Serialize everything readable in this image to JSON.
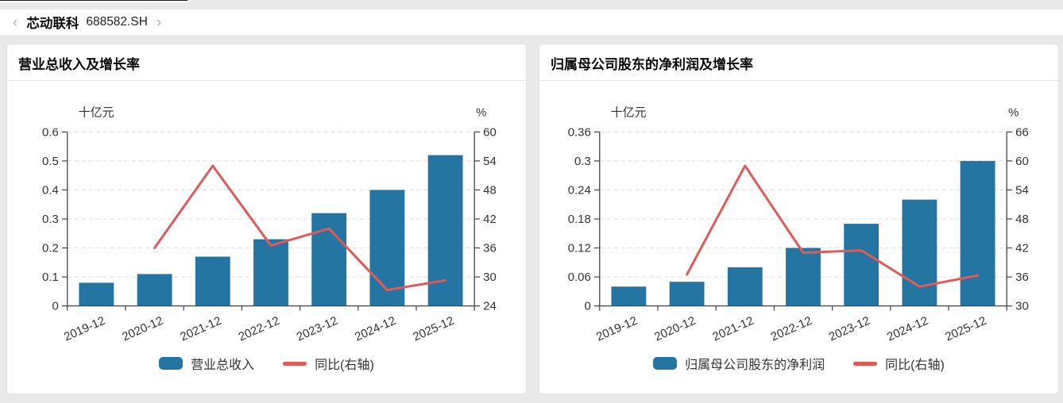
{
  "header": {
    "prev_icon": "‹",
    "next_icon": "›",
    "stock_name": "芯动联科",
    "stock_code": "688582.SH"
  },
  "colors": {
    "bar": "#2575a2",
    "line": "#e05a57",
    "grid": "#dcdcdc",
    "axis": "#444444",
    "text": "#333333",
    "page_bg": "#e9e9e9",
    "panel_bg": "#ffffff"
  },
  "charts": [
    {
      "title": "营业总收入及增长率",
      "legend": [
        {
          "type": "bar",
          "label": "营业总收入"
        },
        {
          "type": "line",
          "label": "同比(右轴)"
        }
      ],
      "chart_data": {
        "type": "bar",
        "title": "营业总收入及增长率",
        "categories": [
          "2019-12",
          "2020-12",
          "2021-12",
          "2022-12",
          "2023-12",
          "2024-12",
          "2025-12"
        ],
        "series": [
          {
            "name": "营业总收入",
            "type": "bar",
            "axis": "left",
            "values": [
              0.08,
              0.11,
              0.17,
              0.23,
              0.32,
              0.4,
              0.52
            ]
          },
          {
            "name": "同比(右轴)",
            "type": "line",
            "axis": "right",
            "values": [
              null,
              36,
              53,
              36.5,
              40,
              27.3,
              29.3
            ]
          }
        ],
        "left_axis": {
          "unit": "十亿元",
          "min": 0,
          "max": 0.6,
          "ticks": [
            0,
            0.1,
            0.2,
            0.3,
            0.4,
            0.5,
            0.6
          ]
        },
        "right_axis": {
          "unit": "%",
          "min": 24,
          "max": 60,
          "ticks": [
            24,
            30,
            36,
            42,
            48,
            54,
            60
          ]
        },
        "grid": true,
        "legend_position": "bottom"
      }
    },
    {
      "title": "归属母公司股东的净利润及增长率",
      "legend": [
        {
          "type": "bar",
          "label": "归属母公司股东的净利润"
        },
        {
          "type": "line",
          "label": "同比(右轴)"
        }
      ],
      "chart_data": {
        "type": "bar",
        "title": "归属母公司股东的净利润及增长率",
        "categories": [
          "2019-12",
          "2020-12",
          "2021-12",
          "2022-12",
          "2023-12",
          "2024-12",
          "2025-12"
        ],
        "series": [
          {
            "name": "归属母公司股东的净利润",
            "type": "bar",
            "axis": "left",
            "values": [
              0.04,
              0.05,
              0.08,
              0.12,
              0.17,
              0.22,
              0.3
            ]
          },
          {
            "name": "同比(右轴)",
            "type": "line",
            "axis": "right",
            "values": [
              null,
              36.5,
              59,
              41,
              41.5,
              34,
              36.3
            ]
          }
        ],
        "left_axis": {
          "unit": "十亿元",
          "min": 0,
          "max": 0.36,
          "ticks": [
            0,
            0.06,
            0.12,
            0.18,
            0.24,
            0.3,
            0.36
          ]
        },
        "right_axis": {
          "unit": "%",
          "min": 30,
          "max": 66,
          "ticks": [
            30,
            36,
            42,
            48,
            54,
            60,
            66
          ]
        },
        "grid": true,
        "legend_position": "bottom"
      }
    }
  ]
}
